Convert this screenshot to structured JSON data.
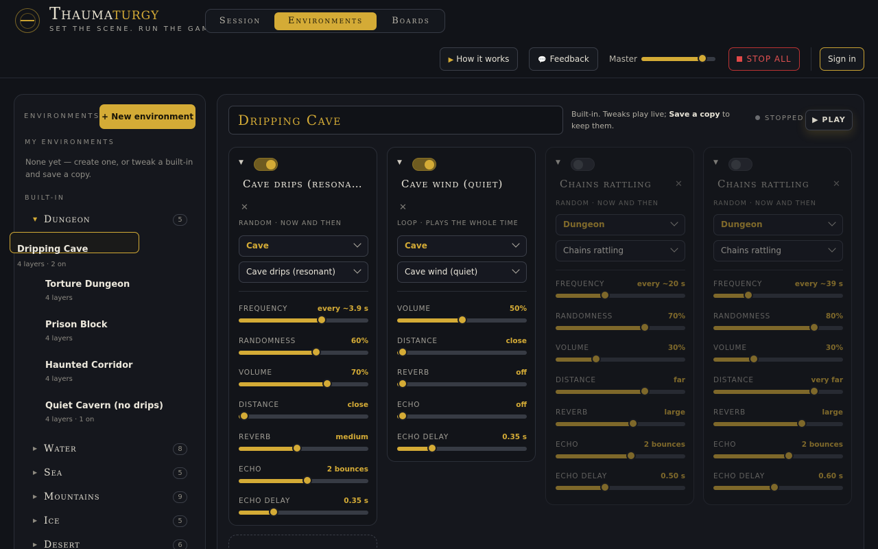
{
  "brand": {
    "name_pre": "Thauma",
    "name_gold": "turgy",
    "tagline": "SET THE SCENE. RUN THE GAME."
  },
  "nav": {
    "tabs": [
      "Session",
      "Environments",
      "Boards"
    ],
    "active": "Environments"
  },
  "toolbar": {
    "how_label": "How it works",
    "feedback_label": "Feedback",
    "master_label": "Master",
    "master_level": 0.82,
    "stop_label": "STOP ALL",
    "signin_label": "Sign in"
  },
  "sidebar": {
    "title": "ENVIRONMENTS",
    "new_label": "+ New environment",
    "my_title": "MY ENVIRONMENTS",
    "my_empty": "None yet — create one, or tweak a built-in and save a copy.",
    "builtin_title": "BUILT-IN",
    "groups": [
      {
        "name": "Dungeon",
        "count": "5",
        "expanded": true
      },
      {
        "name": "Water",
        "count": "8"
      },
      {
        "name": "Sea",
        "count": "5"
      },
      {
        "name": "Mountains",
        "count": "9"
      },
      {
        "name": "Ice",
        "count": "5"
      },
      {
        "name": "Desert",
        "count": "6"
      }
    ],
    "dungeon_envs": [
      {
        "title": "Dripping Cave",
        "sub": "4 layers · 2 on",
        "selected": true
      },
      {
        "title": "Torture Dungeon",
        "sub": "4 layers"
      },
      {
        "title": "Prison Block",
        "sub": "4 layers"
      },
      {
        "title": "Haunted Corridor",
        "sub": "4 layers"
      },
      {
        "title": "Quiet Cavern (no drips)",
        "sub": "4 layers · 1 on"
      }
    ]
  },
  "main": {
    "title": "Dripping Cave",
    "note_pre": "Built-in. Tweaks play live; ",
    "note_bold": "Save a copy",
    "note_post": " to keep them.",
    "status": "STOPPED",
    "play_label": "PLAY"
  },
  "layers": [
    {
      "enabled": true,
      "title": "Cave drips (resonant)",
      "mode": "RANDOM · NOW AND THEN",
      "category": "Cave",
      "sound": "Cave drips (resonant)",
      "params": [
        {
          "label": "FREQUENCY",
          "value": "every ~3.9 s",
          "level": 0.64
        },
        {
          "label": "RANDOMNESS",
          "value": "60%",
          "level": 0.6
        },
        {
          "label": "VOLUME",
          "value": "70%",
          "level": 0.68
        },
        {
          "label": "DISTANCE",
          "value": "close",
          "level": 0.04
        },
        {
          "label": "REVERB",
          "value": "medium",
          "level": 0.45
        },
        {
          "label": "ECHO",
          "value": "2 bounces",
          "level": 0.53
        },
        {
          "label": "ECHO DELAY",
          "value": "0.35 s",
          "level": 0.27
        }
      ]
    },
    {
      "enabled": true,
      "title": "Cave wind (quiet)",
      "mode": "LOOP · PLAYS THE WHOLE TIME",
      "category": "Cave",
      "sound": "Cave wind (quiet)",
      "params": [
        {
          "label": "VOLUME",
          "value": "50%",
          "level": 0.5
        },
        {
          "label": "DISTANCE",
          "value": "close",
          "level": 0.04
        },
        {
          "label": "REVERB",
          "value": "off",
          "level": 0.04
        },
        {
          "label": "ECHO",
          "value": "off",
          "level": 0.04
        },
        {
          "label": "ECHO DELAY",
          "value": "0.35 s",
          "level": 0.27
        }
      ]
    },
    {
      "enabled": false,
      "title": "Chains rattling",
      "mode": "RANDOM · NOW AND THEN",
      "category": "Dungeon",
      "sound": "Chains rattling",
      "params": [
        {
          "label": "FREQUENCY",
          "value": "every ~20 s",
          "level": 0.38
        },
        {
          "label": "RANDOMNESS",
          "value": "70%",
          "level": 0.69
        },
        {
          "label": "VOLUME",
          "value": "30%",
          "level": 0.31
        },
        {
          "label": "DISTANCE",
          "value": "far",
          "level": 0.69
        },
        {
          "label": "REVERB",
          "value": "large",
          "level": 0.6
        },
        {
          "label": "ECHO",
          "value": "2 bounces",
          "level": 0.58
        },
        {
          "label": "ECHO DELAY",
          "value": "0.50 s",
          "level": 0.38
        }
      ]
    },
    {
      "enabled": false,
      "title": "Chains rattling",
      "mode": "RANDOM · NOW AND THEN",
      "category": "Dungeon",
      "sound": "Chains rattling",
      "params": [
        {
          "label": "FREQUENCY",
          "value": "every ~39 s",
          "level": 0.27
        },
        {
          "label": "RANDOMNESS",
          "value": "80%",
          "level": 0.78
        },
        {
          "label": "VOLUME",
          "value": "30%",
          "level": 0.31
        },
        {
          "label": "DISTANCE",
          "value": "very far",
          "level": 0.78
        },
        {
          "label": "REVERB",
          "value": "large",
          "level": 0.68
        },
        {
          "label": "ECHO",
          "value": "2 bounces",
          "level": 0.58
        },
        {
          "label": "ECHO DELAY",
          "value": "0.60 s",
          "level": 0.47
        }
      ]
    }
  ]
}
